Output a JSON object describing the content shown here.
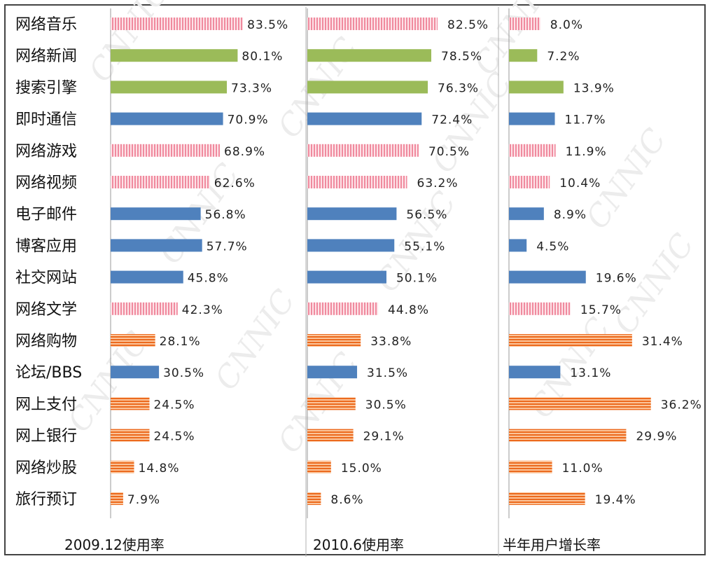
{
  "chart_data": {
    "type": "bar",
    "categories": [
      "网络音乐",
      "网络新闻",
      "搜索引擎",
      "即时通信",
      "网络游戏",
      "网络视频",
      "电子邮件",
      "博客应用",
      "社交网站",
      "网络文学",
      "网络购物",
      "论坛/BBS",
      "网上支付",
      "网上银行",
      "网络炒股",
      "旅行预订"
    ],
    "category_groups": [
      "entertainment",
      "info",
      "info",
      "comm",
      "entertainment",
      "entertainment",
      "comm",
      "comm",
      "comm",
      "entertainment",
      "commerce",
      "comm",
      "commerce",
      "commerce",
      "commerce",
      "commerce"
    ],
    "group_colors": {
      "entertainment": "#f4a6b3",
      "info": "#9bbb59",
      "comm": "#4f81bd",
      "commerce": "#f07d32"
    },
    "series": [
      {
        "title": "2009.12使用率",
        "values": [
          83.5,
          80.1,
          73.3,
          70.9,
          68.9,
          62.6,
          56.8,
          57.7,
          45.8,
          42.3,
          28.1,
          30.5,
          24.5,
          24.5,
          14.8,
          7.9
        ],
        "labels": [
          "83.5%",
          "80.1%",
          "73.3%",
          "70.9%",
          "68.9%",
          "62.6%",
          "56.8%",
          "57.7%",
          "45.8%",
          "42.3%",
          "28.1%",
          "30.5%",
          "24.5%",
          "24.5%",
          "14.8%",
          "7.9%"
        ]
      },
      {
        "title": "2010.6使用率",
        "values": [
          82.5,
          78.5,
          76.3,
          72.4,
          70.5,
          63.2,
          56.5,
          55.1,
          50.1,
          44.8,
          33.8,
          31.5,
          30.5,
          29.1,
          15.0,
          8.6
        ],
        "labels": [
          "82.5%",
          "78.5%",
          "76.3%",
          "72.4%",
          "70.5%",
          "63.2%",
          "56.5%",
          "55.1%",
          "50.1%",
          "44.8%",
          "33.8%",
          "31.5%",
          "30.5%",
          "29.1%",
          "15.0%",
          "8.6%"
        ]
      },
      {
        "title": "半年用户增长率",
        "values": [
          8.0,
          7.2,
          13.9,
          11.7,
          11.9,
          10.4,
          8.9,
          4.5,
          19.6,
          15.7,
          31.4,
          13.1,
          36.2,
          29.9,
          11.0,
          19.4
        ],
        "labels": [
          "8.0%",
          "7.2%",
          "13.9%",
          "11.7%",
          "11.9%",
          "10.4%",
          "8.9%",
          "4.5%",
          "19.6%",
          "15.7%",
          "31.4%",
          "13.1%",
          "36.2%",
          "29.9%",
          "11.0%",
          "19.4%"
        ]
      }
    ],
    "grid": false,
    "legend": "none",
    "watermark": "CNNIC"
  }
}
